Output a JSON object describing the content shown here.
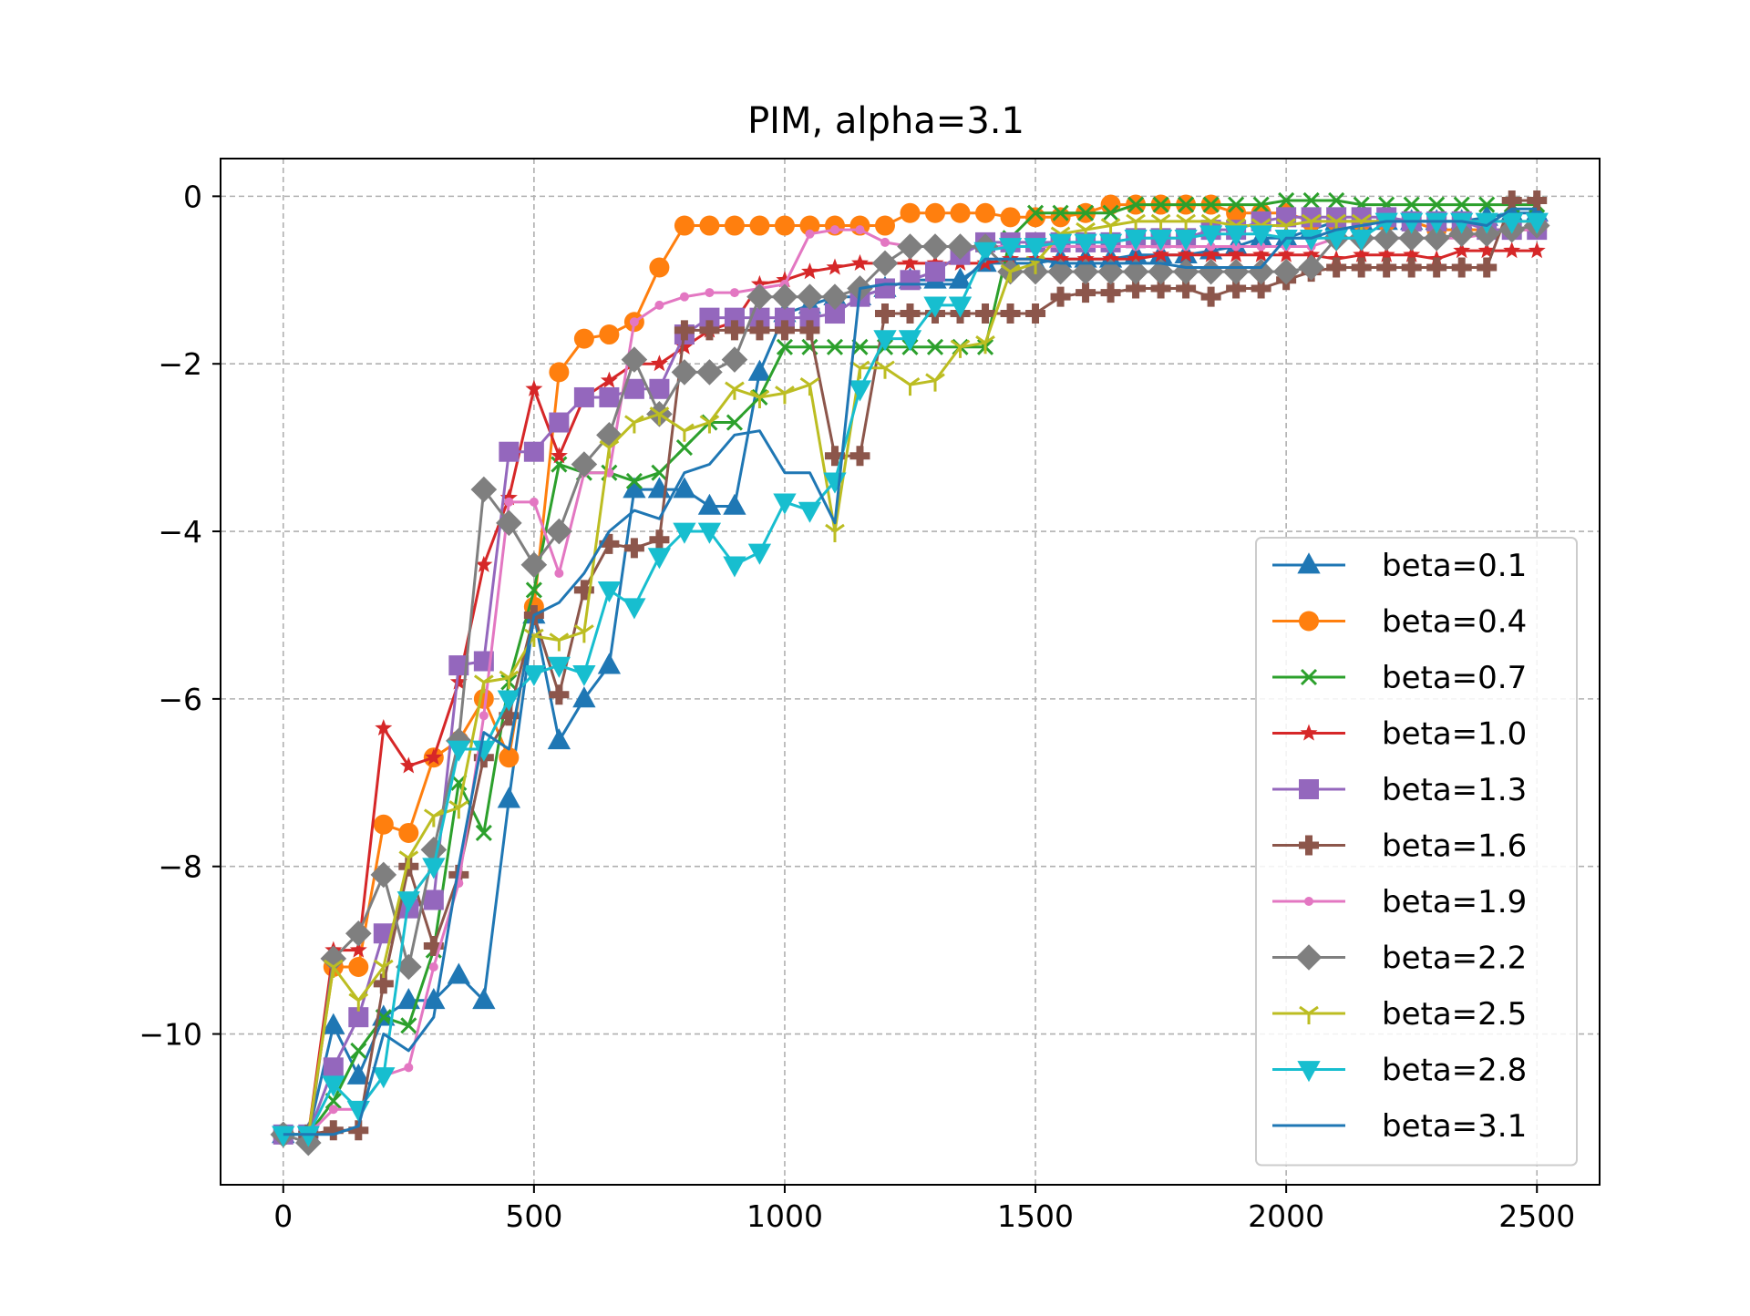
{
  "chart_data": {
    "type": "line",
    "title": "PIM, alpha=3.1",
    "xlabel": "",
    "ylabel": "",
    "xlim": [
      -125,
      2625
    ],
    "ylim": [
      -11.8,
      0.45
    ],
    "xticks": [
      0,
      500,
      1000,
      1500,
      2000,
      2500
    ],
    "yticks": [
      0,
      -2,
      -4,
      -6,
      -8,
      -10
    ],
    "xtick_labels": [
      "0",
      "500",
      "1000",
      "1500",
      "2000",
      "2500"
    ],
    "ytick_labels": [
      "0",
      "−2",
      "−4",
      "−6",
      "−8",
      "−10"
    ],
    "grid": true,
    "legend_position": "lower right",
    "x": [
      0,
      50,
      100,
      150,
      200,
      250,
      300,
      350,
      400,
      450,
      500,
      550,
      600,
      650,
      700,
      750,
      800,
      850,
      900,
      950,
      1000,
      1050,
      1100,
      1150,
      1200,
      1250,
      1300,
      1350,
      1400,
      1450,
      1500,
      1550,
      1600,
      1650,
      1700,
      1750,
      1800,
      1850,
      1900,
      1950,
      2000,
      2050,
      2100,
      2150,
      2200,
      2250,
      2300,
      2350,
      2400,
      2450,
      2500
    ],
    "series": [
      {
        "name": "beta=0.1",
        "color": "#1f77b4",
        "marker": "triangle-up",
        "values": [
          -11.2,
          -11.2,
          -9.9,
          -10.5,
          -9.8,
          -9.6,
          -9.6,
          -9.3,
          -9.6,
          -7.2,
          -5.0,
          -6.5,
          -6.0,
          -5.6,
          -3.5,
          -3.5,
          -3.5,
          -3.7,
          -3.7,
          -2.1,
          -1.4,
          -1.3,
          -1.2,
          -1.2,
          -1.1,
          -1.0,
          -1.0,
          -1.0,
          -0.8,
          -0.8,
          -0.8,
          -0.75,
          -0.75,
          -0.75,
          -0.7,
          -0.7,
          -0.7,
          -0.65,
          -0.6,
          -0.5,
          -0.5,
          -0.4,
          -0.3,
          -0.3,
          -0.3,
          -0.3,
          -0.3,
          -0.3,
          -0.25,
          -0.2,
          -0.2
        ]
      },
      {
        "name": "beta=0.4",
        "color": "#ff7f0e",
        "marker": "circle",
        "values": [
          -11.2,
          -11.2,
          -9.2,
          -9.2,
          -7.5,
          -7.6,
          -6.7,
          -6.5,
          -6.0,
          -6.7,
          -4.9,
          -2.1,
          -1.7,
          -1.65,
          -1.5,
          -0.85,
          -0.35,
          -0.35,
          -0.35,
          -0.35,
          -0.35,
          -0.35,
          -0.35,
          -0.35,
          -0.35,
          -0.2,
          -0.2,
          -0.2,
          -0.2,
          -0.25,
          -0.25,
          -0.25,
          -0.2,
          -0.1,
          -0.1,
          -0.1,
          -0.1,
          -0.1,
          -0.2,
          -0.2,
          -0.2,
          -0.3,
          -0.3,
          -0.3,
          -0.3,
          -0.3,
          -0.4,
          -0.4,
          -0.4,
          -0.4,
          -0.4
        ]
      },
      {
        "name": "beta=0.7",
        "color": "#2ca02c",
        "marker": "x",
        "values": [
          -11.2,
          -11.2,
          -10.8,
          -10.2,
          -9.8,
          -9.9,
          -9.0,
          -7.0,
          -7.6,
          -5.8,
          -4.7,
          -3.2,
          -3.3,
          -3.3,
          -3.4,
          -3.3,
          -3.0,
          -2.7,
          -2.7,
          -2.4,
          -1.8,
          -1.8,
          -1.8,
          -1.8,
          -1.8,
          -1.8,
          -1.8,
          -1.8,
          -1.8,
          -0.5,
          -0.2,
          -0.2,
          -0.2,
          -0.2,
          -0.1,
          -0.1,
          -0.1,
          -0.1,
          -0.1,
          -0.1,
          -0.05,
          -0.05,
          -0.05,
          -0.1,
          -0.1,
          -0.1,
          -0.1,
          -0.1,
          -0.1,
          -0.1,
          -0.1
        ]
      },
      {
        "name": "beta=1.0",
        "color": "#d62728",
        "marker": "star",
        "values": [
          -11.2,
          -11.2,
          -9.0,
          -9.0,
          -6.35,
          -6.8,
          -6.7,
          -5.8,
          -4.4,
          -3.6,
          -2.3,
          -3.1,
          -2.4,
          -2.2,
          -2.0,
          -2.0,
          -1.8,
          -1.6,
          -1.5,
          -1.05,
          -1.0,
          -0.9,
          -0.85,
          -0.8,
          -0.8,
          -0.8,
          -0.8,
          -0.8,
          -0.8,
          -0.75,
          -0.75,
          -0.75,
          -0.75,
          -0.75,
          -0.75,
          -0.7,
          -0.7,
          -0.7,
          -0.7,
          -0.7,
          -0.7,
          -0.7,
          -0.75,
          -0.7,
          -0.7,
          -0.7,
          -0.75,
          -0.65,
          -0.65,
          -0.65,
          -0.65
        ]
      },
      {
        "name": "beta=1.3",
        "color": "#9467bd",
        "marker": "square",
        "values": [
          -11.2,
          -11.2,
          -10.4,
          -9.8,
          -8.8,
          -8.5,
          -8.4,
          -5.6,
          -5.55,
          -3.05,
          -3.05,
          -2.7,
          -2.4,
          -2.4,
          -2.3,
          -2.3,
          -1.65,
          -1.45,
          -1.45,
          -1.45,
          -1.45,
          -1.45,
          -1.4,
          -1.2,
          -1.1,
          -1.0,
          -0.9,
          -0.7,
          -0.55,
          -0.55,
          -0.55,
          -0.55,
          -0.55,
          -0.55,
          -0.5,
          -0.5,
          -0.5,
          -0.4,
          -0.4,
          -0.3,
          -0.25,
          -0.25,
          -0.25,
          -0.25,
          -0.25,
          -0.3,
          -0.3,
          -0.3,
          -0.4,
          -0.4,
          -0.4
        ]
      },
      {
        "name": "beta=1.6",
        "color": "#8c564b",
        "marker": "plus",
        "values": [
          -11.2,
          -11.2,
          -11.15,
          -11.15,
          -9.4,
          -8.0,
          -8.95,
          -8.1,
          -6.7,
          -6.2,
          -5.0,
          -5.95,
          -4.7,
          -4.15,
          -4.2,
          -4.1,
          -1.6,
          -1.6,
          -1.6,
          -1.6,
          -1.6,
          -1.6,
          -3.1,
          -3.1,
          -1.4,
          -1.4,
          -1.4,
          -1.4,
          -1.4,
          -1.4,
          -1.4,
          -1.2,
          -1.15,
          -1.15,
          -1.1,
          -1.1,
          -1.1,
          -1.2,
          -1.1,
          -1.1,
          -1.0,
          -0.9,
          -0.85,
          -0.85,
          -0.85,
          -0.85,
          -0.85,
          -0.85,
          -0.85,
          -0.05,
          -0.05
        ]
      },
      {
        "name": "beta=1.9",
        "color": "#e377c2",
        "marker": "point",
        "values": [
          -11.2,
          -11.2,
          -10.9,
          -10.9,
          -10.5,
          -10.4,
          -9.2,
          -8.2,
          -6.2,
          -3.65,
          -3.65,
          -4.5,
          -3.3,
          -3.3,
          -1.5,
          -1.3,
          -1.2,
          -1.15,
          -1.15,
          -1.1,
          -1.05,
          -0.45,
          -0.4,
          -0.4,
          -0.55,
          -0.6,
          -0.6,
          -0.6,
          -0.6,
          -0.6,
          -0.6,
          -0.6,
          -0.6,
          -0.6,
          -0.6,
          -0.6,
          -0.6,
          -0.6,
          -0.6,
          -0.6,
          -0.6,
          -0.6,
          -0.5,
          -0.5,
          -0.5,
          -0.5,
          -0.5,
          -0.5,
          -0.45,
          -0.4,
          -0.4
        ]
      },
      {
        "name": "beta=2.2",
        "color": "#7f7f7f",
        "marker": "diamond",
        "values": [
          -11.2,
          -11.3,
          -9.1,
          -8.8,
          -8.1,
          -9.2,
          -7.8,
          -6.5,
          -3.5,
          -3.9,
          -4.4,
          -4.0,
          -3.2,
          -2.85,
          -1.95,
          -2.6,
          -2.1,
          -2.1,
          -1.95,
          -1.2,
          -1.2,
          -1.2,
          -1.2,
          -1.1,
          -0.8,
          -0.6,
          -0.6,
          -0.6,
          -0.6,
          -0.9,
          -0.9,
          -0.9,
          -0.9,
          -0.9,
          -0.9,
          -0.9,
          -0.9,
          -0.9,
          -0.9,
          -0.9,
          -0.9,
          -0.85,
          -0.5,
          -0.5,
          -0.5,
          -0.5,
          -0.5,
          -0.45,
          -0.45,
          -0.4,
          -0.35
        ]
      },
      {
        "name": "beta=2.5",
        "color": "#bcbd22",
        "marker": "tri-down",
        "values": [
          -11.2,
          -11.2,
          -9.2,
          -9.6,
          -9.2,
          -7.9,
          -7.4,
          -7.3,
          -5.8,
          -5.75,
          -5.25,
          -5.3,
          -5.2,
          -3.0,
          -2.7,
          -2.6,
          -2.8,
          -2.7,
          -2.3,
          -2.4,
          -2.35,
          -2.25,
          -4.0,
          -2.05,
          -2.05,
          -2.25,
          -2.2,
          -1.8,
          -1.75,
          -0.9,
          -0.8,
          -0.45,
          -0.4,
          -0.35,
          -0.3,
          -0.3,
          -0.3,
          -0.3,
          -0.35,
          -0.35,
          -0.35,
          -0.3,
          -0.3,
          -0.3,
          -0.3,
          -0.3,
          -0.3,
          -0.3,
          -0.3,
          -0.3,
          -0.3
        ]
      },
      {
        "name": "beta=2.8",
        "color": "#17becf",
        "marker": "triangle-down",
        "values": [
          -11.2,
          -11.2,
          -10.6,
          -10.9,
          -10.5,
          -8.4,
          -8.0,
          -6.6,
          -6.6,
          -6.0,
          -5.7,
          -5.6,
          -5.7,
          -4.7,
          -4.9,
          -4.3,
          -4.0,
          -4.0,
          -4.4,
          -4.25,
          -3.65,
          -3.75,
          -3.4,
          -2.3,
          -1.7,
          -1.7,
          -1.3,
          -1.3,
          -0.65,
          -0.6,
          -0.6,
          -0.55,
          -0.55,
          -0.55,
          -0.5,
          -0.5,
          -0.5,
          -0.45,
          -0.45,
          -0.45,
          -0.5,
          -0.5,
          -0.5,
          -0.5,
          -0.3,
          -0.3,
          -0.3,
          -0.3,
          -0.3,
          -0.3,
          -0.3
        ]
      },
      {
        "name": "beta=3.1",
        "color": "#1f77b4",
        "marker": "none",
        "values": [
          -11.2,
          -11.2,
          -11.2,
          -11.1,
          -10.0,
          -10.2,
          -9.8,
          -8.0,
          -6.4,
          -6.6,
          -5.0,
          -4.85,
          -4.5,
          -4.0,
          -3.75,
          -3.85,
          -3.3,
          -3.2,
          -2.85,
          -2.8,
          -3.3,
          -3.3,
          -3.9,
          -1.1,
          -1.05,
          -1.05,
          -1.05,
          -1.05,
          -0.75,
          -0.75,
          -0.75,
          -0.8,
          -0.8,
          -0.8,
          -0.8,
          -0.8,
          -0.85,
          -0.85,
          -0.85,
          -0.85,
          -0.5,
          -0.5,
          -0.4,
          -0.35,
          -0.3,
          -0.3,
          -0.3,
          -0.3,
          -0.35,
          -0.15,
          -0.15
        ]
      }
    ]
  }
}
